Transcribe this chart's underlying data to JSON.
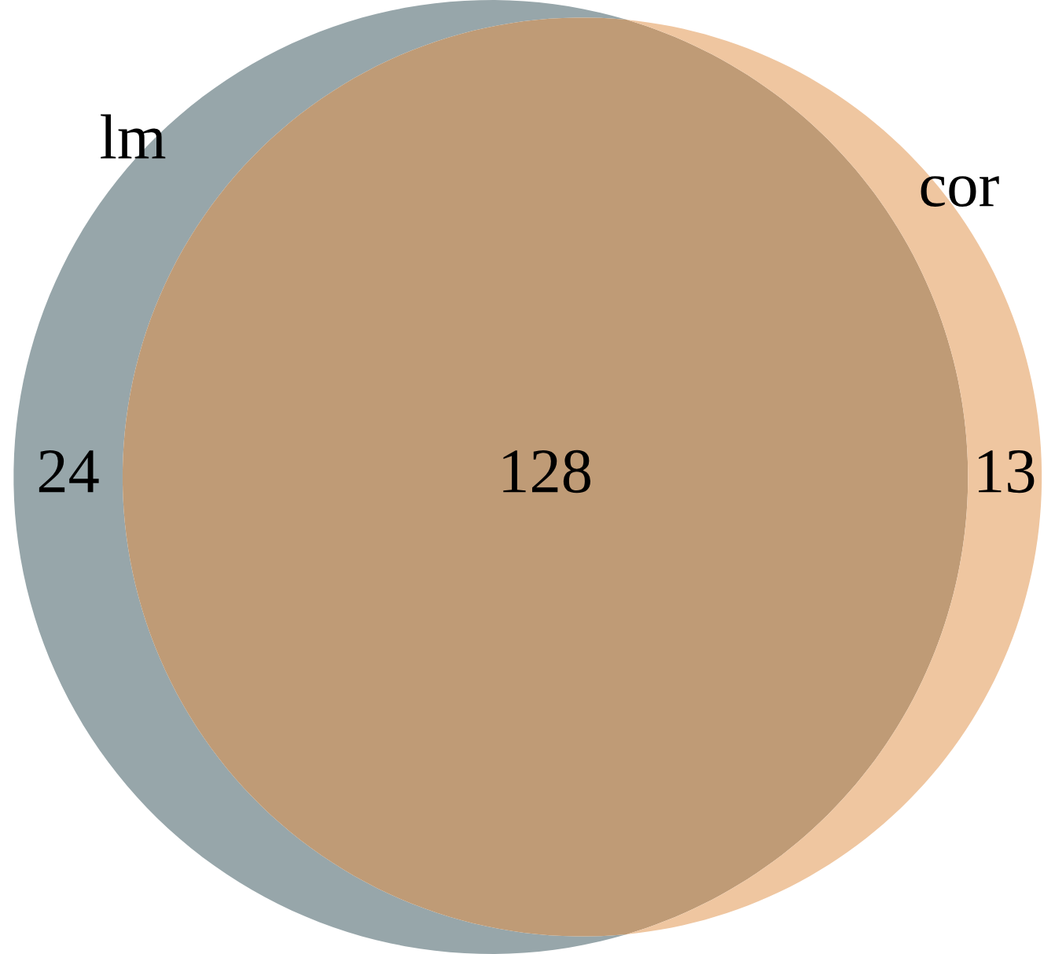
{
  "chart_data": {
    "type": "other",
    "categories": [
      "lm",
      null,
      "cor"
    ],
    "values": [
      24,
      128,
      13
    ],
    "colors": [
      "#97a6aa",
      "#bf9b76",
      "#efc6a0"
    ],
    "data_labels": true
  }
}
